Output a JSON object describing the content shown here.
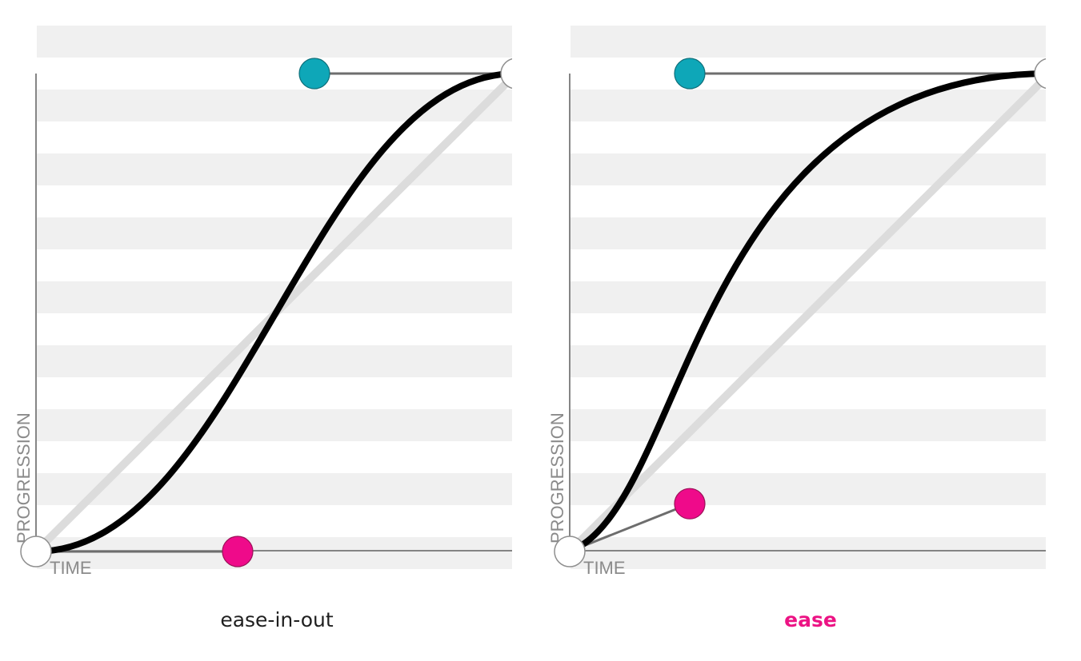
{
  "colors": {
    "stripe": "#f0f0f0",
    "curve": "#000000",
    "diagonal": "#dcdcdc",
    "control_point_1": "#ef0a8a",
    "control_point_2": "#0ea7b8",
    "endpoint": "#ffffff",
    "active_caption": "#ec1384",
    "caption": "#1f1f1f",
    "axis_text": "#8a8a8a"
  },
  "panels": [
    {
      "name": "ease-in-out",
      "caption": "ease-in-out",
      "active": false,
      "x_axis_label": "TIME",
      "y_axis_label": "PROGRESSION",
      "bezier": [
        0.42,
        0.0,
        0.58,
        1.0
      ]
    },
    {
      "name": "ease",
      "caption": "ease",
      "active": true,
      "x_axis_label": "TIME",
      "y_axis_label": "PROGRESSION",
      "bezier": [
        0.25,
        0.1,
        0.25,
        1.0
      ]
    }
  ]
}
